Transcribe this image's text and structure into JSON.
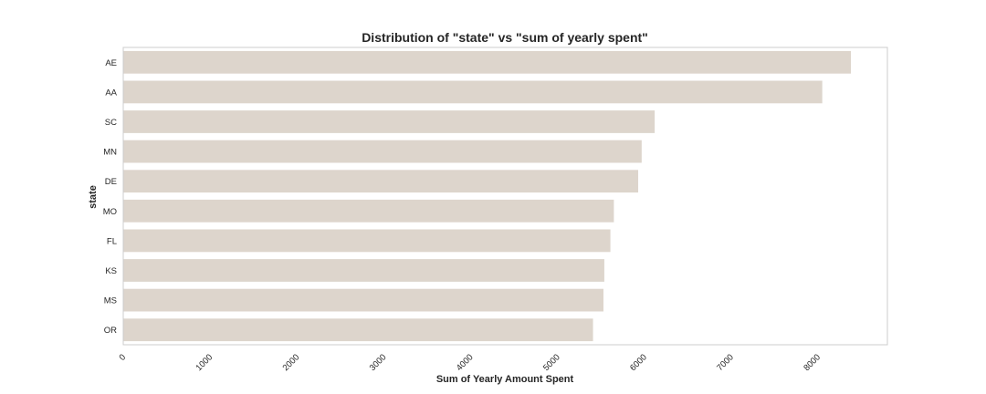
{
  "chart_data": {
    "type": "bar",
    "orientation": "horizontal",
    "title": "Distribution of \"state\" vs \"sum of yearly spent\"",
    "xlabel": "Sum of Yearly Amount Spent",
    "ylabel": "state",
    "categories": [
      "AE",
      "AA",
      "SC",
      "MN",
      "DE",
      "MO",
      "FL",
      "KS",
      "MS",
      "OR"
    ],
    "values": [
      8380,
      8050,
      6120,
      5970,
      5930,
      5650,
      5610,
      5540,
      5530,
      5410
    ],
    "xlim": [
      0,
      8800
    ],
    "xticks": [
      0,
      1000,
      2000,
      3000,
      4000,
      5000,
      6000,
      7000,
      8000
    ],
    "xtick_labels": [
      "0",
      "1000",
      "2000",
      "3000",
      "4000",
      "5000",
      "6000",
      "7000",
      "8000"
    ],
    "grid": false,
    "bar_color": "#ddd5cc",
    "frame_color": "#cccccc",
    "text_color": "#262626"
  }
}
